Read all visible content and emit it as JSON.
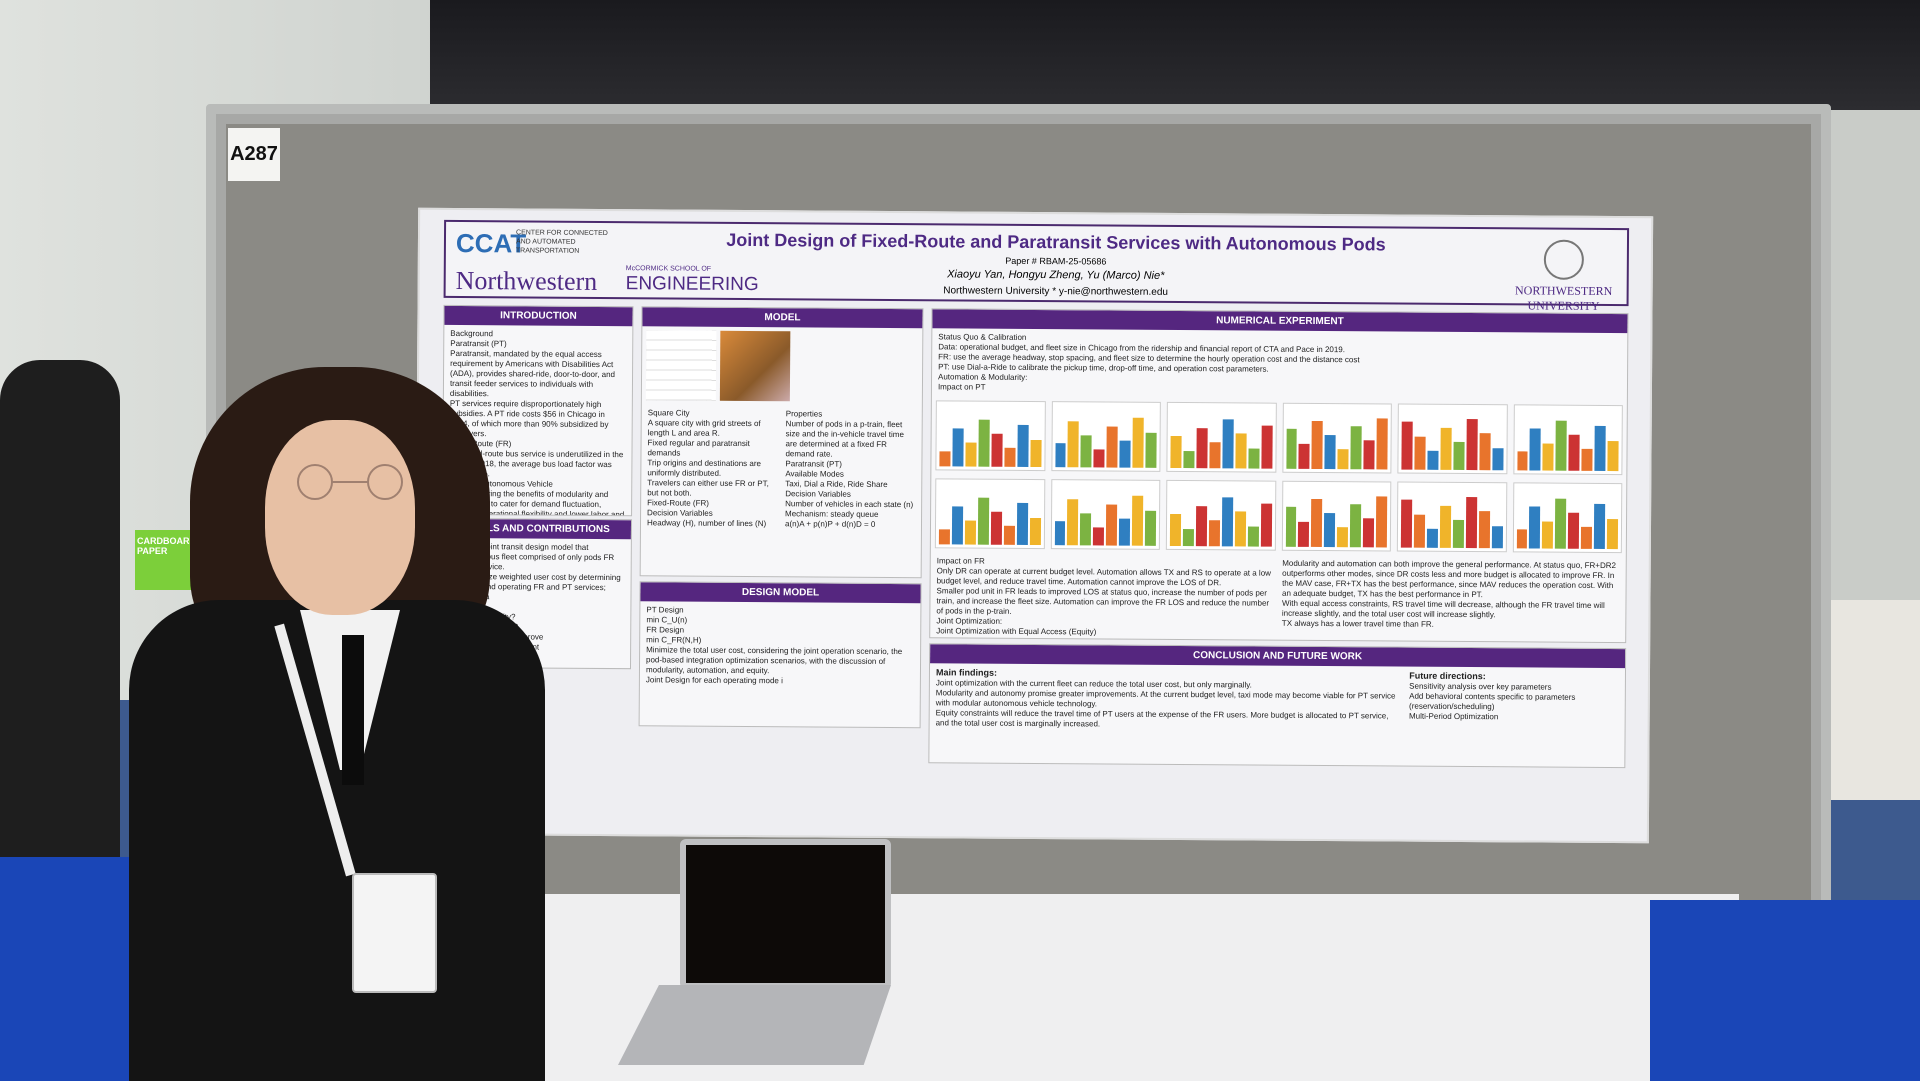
{
  "booth_label": "A287",
  "background_sign": "CARDBOARD/MIXED PAPER",
  "poster": {
    "coat_logo": "CCAT",
    "coat_text": "CENTER FOR CONNECTED AND AUTOMATED TRANSPORTATION",
    "northwestern_logo": "Northwestern",
    "mccormick_small": "McCORMICK SCHOOL OF",
    "mccormick_big": "ENGINEERING",
    "title": "Joint Design of Fixed-Route and Paratransit Services with Autonomous Pods",
    "paper_number": "Paper # RBAM-25-05686",
    "authors": "Xiaoyu Yan, Hongyu Zheng, Yu (Marco) Nie*",
    "affiliation": "Northwestern University * y-nie@northwestern.edu",
    "nwu_logo": "NORTHWESTERN UNIVERSITY",
    "sections": {
      "introduction": {
        "heading": "INTRODUCTION",
        "lines": [
          "Background",
          "Paratransit (PT)",
          "Paratransit, mandated by the equal access requirement by Americans with Disabilities Act (ADA), provides shared-ride, door-to-door, and transit feeder services to individuals with disabilities.",
          "PT services require disproportionately high subsidies. A PT ride costs $56 in Chicago in 2024, of which more than 90% subsidized by taxpayers.",
          "Fixed-Route (FR)",
          "The fixed-route bus service is underutilized in the U.S. In 2018, the average bus load factor was about 10%.",
          "Modular Autonomous Vehicle",
          "MAV can bring the benefits of modularity and automation to cater for demand fluctuation, improve operational flexibility and lower labor and energy costs."
        ]
      },
      "goals": {
        "heading": "GOALS AND CONTRIBUTIONS",
        "lines": [
          "a stylized joint transit design model that homogeneous fleet comprised of only pods FR and FR service.",
          "tive: minimize weighted user cost by determining fleet size and operating FR and PT services; subject to a",
          "ons:",
          "efits of modularity?",
          "efits of automation?",
          "es the joint design improve",
          "al access among different",
          "of equity enforcement on"
        ]
      },
      "model": {
        "heading": "MODEL",
        "lines": [
          "Square City",
          "A square city with grid streets of length L and area R.",
          "Fixed regular and paratransit demands",
          "Trip origins and destinations are uniformly distributed.",
          "Travelers can either use FR or PT, but not both.",
          "Fixed-Route (FR)",
          "Decision Variables",
          "Headway (H), number of lines (N)",
          "Properties",
          "Number of pods in a p-train, fleet size and the in-vehicle travel time are determined at a fixed FR demand rate.",
          "Paratransit (PT)",
          "Available Modes",
          "Taxi, Dial a Ride, Ride Share",
          "Decision Variables",
          "Number of vehicles in each state (n)",
          "Mechanism: steady queue",
          "a(n)A + p(n)P + d(n)D = 0"
        ]
      },
      "design_model": {
        "heading": "DESIGN MODEL",
        "lines": [
          "PT Design",
          "min C_U(n)",
          "FR Design",
          "min C_FR(N,H)",
          "Minimize the total user cost, considering the joint operation scenario, the pod-based integration optimization scenarios, with the discussion of modularity, automation, and equity.",
          "Joint Design for each operating mode i"
        ]
      },
      "numerical": {
        "heading": "NUMERICAL EXPERIMENT",
        "lines": [
          "Status Quo & Calibration",
          "Data: operational budget, and fleet size in Chicago from the ridership and financial report of CTA and Pace in 2019.",
          "FR: use the average headway, stop spacing, and fleet size to determine the hourly operation cost and the distance cost",
          "PT: use Dial-a-Ride to calibrate the pickup time, drop-off time, and operation cost parameters.",
          "Automation & Modularity:",
          "Impact on PT",
          "Impact on FR",
          "Only DR can operate at current budget level. Automation allows TX and RS to operate at a low budget level, and reduce travel time. Automation cannot improve the LOS of DR.",
          "Smaller pod unit in FR leads to improved LOS at status quo, increase the number of pods per train, and increase the fleet size. Automation can improve the FR LOS and reduce the number of pods in the p-train.",
          "Joint Optimization:",
          "Joint Optimization with Equal Access (Equity)",
          "Modularity and automation can both improve the general performance. At status quo, FR+DR2 outperforms other modes, since DR costs less and more budget is allocated to improve FR. In the MAV case, FR+TX has the best performance, since MAV reduces the operation cost. With an adequate budget, TX has the best performance in PT.",
          "With equal access constraints, RS travel time will decrease, although the FR travel time will increase slightly, and the total user cost will increase slightly.",
          "TX always has a lower travel time than FR."
        ]
      },
      "conclusion": {
        "heading": "CONCLUSION AND FUTURE WORK",
        "main_label": "Main findings:",
        "findings": [
          "Joint optimization with the current fleet can reduce the total user cost, but only marginally.",
          "Modularity and autonomy promise greater improvements. At the current budget level, taxi mode may become viable for PT service with modular autonomous vehicle technology.",
          "Equity constraints will reduce the travel time of PT users at the expense of the FR users. More budget is allocated to PT service, and the total user cost is marginally increased."
        ],
        "future_label": "Future directions:",
        "future": [
          "Sensitivity analysis over key parameters",
          "Add behavioral contents specific to parameters (reservation/scheduling)",
          "Multi-Period Optimization"
        ]
      }
    }
  },
  "colors": {
    "poster_purple": "#55267f",
    "drape_blue": "#1a46b7",
    "floor_blue": "#3d5a8e"
  }
}
